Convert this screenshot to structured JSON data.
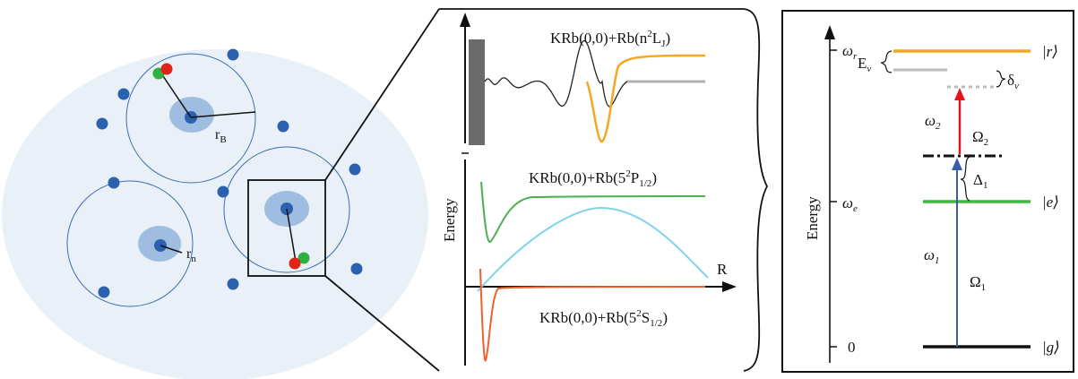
{
  "left_panel": {
    "radius_label_B_main": "r",
    "radius_label_B_sub": "B",
    "radius_label_n_main": "r",
    "radius_label_n_sub": "n"
  },
  "middle_panel": {
    "y_axis_label": "Energy",
    "x_axis_label": "R",
    "curve_rydberg": {
      "prefix": "KRb(0,0)+Rb(n",
      "sup": "2",
      "mid": "L",
      "sub": "J",
      "suffix": ")"
    },
    "curve_p": {
      "prefix": "KRb(0,0)+Rb(5",
      "sup": "2",
      "mid": "P",
      "sub": "1/2",
      "suffix": ")"
    },
    "curve_s": {
      "prefix": "KRb(0,0)+Rb(5",
      "sup": "2",
      "mid": "S",
      "sub": "1/2",
      "suffix": ")"
    },
    "colors": {
      "rydberg": "#f5a623",
      "p_state": "#4caf50",
      "s_state": "#f0602a",
      "dressing": "#7fd3ec"
    }
  },
  "right_panel": {
    "y_axis_label": "Energy",
    "axis_ticks": {
      "omega_r": "ω",
      "omega_r_sub": "r",
      "omega_e": "ω",
      "omega_e_sub": "e",
      "zero": "0"
    },
    "kets": {
      "r": "|r⟩",
      "e": "|e⟩",
      "g": "|g⟩"
    },
    "E_nu": {
      "main": "E",
      "sub": "ν"
    },
    "delta_nu": {
      "main": "δ",
      "sub": "ν"
    },
    "omega_2": {
      "main": "ω",
      "sub": "2"
    },
    "Omega_2": {
      "main": "Ω",
      "sub": "2"
    },
    "Delta_1": {
      "main": "Δ",
      "sub": "1"
    },
    "omega_1": {
      "main": "ω",
      "sub": "1"
    },
    "Omega_1": {
      "main": "Ω",
      "sub": "1"
    },
    "colors": {
      "r_level": "#f5a623",
      "e_level": "#3cba3c",
      "arrow_up": "#3a5da8",
      "arrow_red": "#e8141c"
    }
  }
}
